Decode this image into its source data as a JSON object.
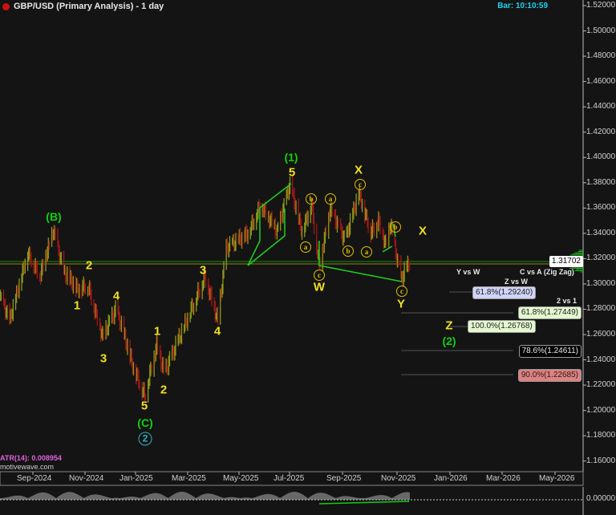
{
  "header": {
    "title": "GBP/USD (Primary Analysis) - 1 day",
    "bar_time": "Bar: 10:10:59"
  },
  "indicator": {
    "atr_label": "ATR(14): 0.008954",
    "watermark": "motivewave.com",
    "zero_label": "0.00000"
  },
  "colors": {
    "up_bar": "#8a9a18",
    "down_bar": "#a01818",
    "wave_yellow": "#f0e020",
    "wave_green": "#10d010",
    "circle_teal": "#30b0c0",
    "axis_text": "#d0d0d0"
  },
  "chart_data": {
    "type": "bar",
    "symbol": "GBP/USD",
    "timeframe": "1 day",
    "ylim": [
      1.16,
      1.52
    ],
    "y_ticks": [
      "1.52000",
      "1.50000",
      "1.48000",
      "1.46000",
      "1.44000",
      "1.42000",
      "1.40000",
      "1.38000",
      "1.36000",
      "1.34000",
      "1.32000",
      "1.30000",
      "1.28000",
      "1.26000",
      "1.24000",
      "1.22000",
      "1.20000",
      "1.18000",
      "1.16000"
    ],
    "x_ticks": [
      "Sep-2024",
      "Nov-2024",
      "Jan-2025",
      "Mar-2025",
      "May-2025",
      "Jul-2025",
      "Sep-2025",
      "Nov-2025",
      "Jan-2026",
      "Mar-2026",
      "May-2026"
    ],
    "current_price": "1.31702",
    "price_path": [
      [
        "2024-07-25",
        1.29
      ],
      [
        "2024-08-05",
        1.271
      ],
      [
        "2024-08-26",
        1.325
      ],
      [
        "2024-09-09",
        1.306
      ],
      [
        "2024-09-25",
        1.342
      ],
      [
        "2024-10-07",
        1.309
      ],
      [
        "2024-10-23",
        1.296
      ],
      [
        "2024-11-04",
        1.299
      ],
      [
        "2024-11-21",
        1.258
      ],
      [
        "2024-12-07",
        1.28
      ],
      [
        "2024-12-26",
        1.236
      ],
      [
        "2025-01-09",
        1.212
      ],
      [
        "2025-01-23",
        1.251
      ],
      [
        "2025-02-01",
        1.229
      ],
      [
        "2025-03-20",
        1.306
      ],
      [
        "2025-04-04",
        1.271
      ],
      [
        "2025-04-14",
        1.328
      ],
      [
        "2025-05-10",
        1.341
      ],
      [
        "2025-05-24",
        1.363
      ],
      [
        "2025-06-12",
        1.341
      ],
      [
        "2025-06-27",
        1.379
      ],
      [
        "2025-07-11",
        1.341
      ],
      [
        "2025-07-22",
        1.363
      ],
      [
        "2025-07-31",
        1.315
      ],
      [
        "2025-08-13",
        1.359
      ],
      [
        "2025-08-30",
        1.334
      ],
      [
        "2025-09-15",
        1.372
      ],
      [
        "2025-09-29",
        1.341
      ],
      [
        "2025-10-08",
        1.35
      ],
      [
        "2025-10-16",
        1.331
      ],
      [
        "2025-10-22",
        1.347
      ],
      [
        "2025-11-03",
        1.303
      ],
      [
        "2025-11-13",
        1.317
      ]
    ],
    "wave_labels": [
      {
        "text": "(B)",
        "color": "green"
      },
      {
        "text": "2",
        "color": "yellow"
      },
      {
        "text": "1",
        "color": "yellow"
      },
      {
        "text": "4",
        "color": "yellow"
      },
      {
        "text": "3",
        "color": "yellow"
      },
      {
        "text": "5",
        "color": "yellow"
      },
      {
        "text": "(C)",
        "color": "green"
      },
      {
        "text": "1",
        "color": "yellow"
      },
      {
        "text": "2",
        "color": "yellow"
      },
      {
        "text": "3",
        "color": "yellow"
      },
      {
        "text": "4",
        "color": "yellow"
      },
      {
        "text": "(1)",
        "color": "green"
      },
      {
        "text": "5",
        "color": "yellow"
      },
      {
        "text": "X",
        "color": "yellow"
      },
      {
        "text": "W",
        "color": "yellow"
      },
      {
        "text": "Y",
        "color": "yellow"
      },
      {
        "text": "X",
        "color": "yellow"
      },
      {
        "text": "Z",
        "color": "yellow"
      },
      {
        "text": "(2)",
        "color": "green"
      }
    ],
    "circled_labels": [
      "b",
      "a",
      "a",
      "c",
      "b",
      "c",
      "a",
      "b",
      "c"
    ],
    "circled_degree_label": "2",
    "fib_headers": [
      "Y vs W",
      "C vs A (Zig Zag)",
      "Z vs W",
      "2 vs 1"
    ],
    "fib_levels": [
      {
        "text": "61.8%(1.29240)",
        "bg": "#d0d4f8"
      },
      {
        "text": "61.8%(1.27449)",
        "bg": "#e4f8d0"
      },
      {
        "text": "100.0%(1.26768)",
        "bg": "#e4f8d0"
      },
      {
        "text": "78.6%(1.24611)",
        "bg": "#000000"
      },
      {
        "text": "90.0%(1.22685)",
        "bg": "#e08080"
      }
    ]
  }
}
